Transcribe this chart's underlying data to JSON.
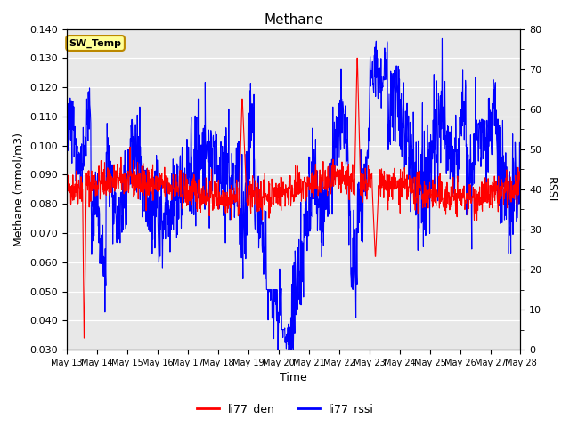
{
  "title": "Methane",
  "ylabel_left": "Methane (mmol/m3)",
  "ylabel_right": "RSSI",
  "xlabel": "Time",
  "ylim_left": [
    0.03,
    0.14
  ],
  "ylim_right": [
    0,
    80
  ],
  "yticks_left": [
    0.03,
    0.04,
    0.05,
    0.06,
    0.07,
    0.08,
    0.09,
    0.1,
    0.11,
    0.12,
    0.13,
    0.14
  ],
  "yticks_right": [
    0,
    10,
    20,
    30,
    40,
    50,
    60,
    70,
    80
  ],
  "yticks_right_minor": [
    5,
    15,
    25,
    35,
    45,
    55,
    65,
    75
  ],
  "xtick_labels": [
    "May 13",
    "May 14",
    "May 15",
    "May 16",
    "May 17",
    "May 18",
    "May 19",
    "May 20",
    "May 21",
    "May 22",
    "May 23",
    "May 24",
    "May 25",
    "May 26",
    "May 27",
    "May 28"
  ],
  "color_red": "#FF0000",
  "color_blue": "#0000FF",
  "bg_color": "#E8E8E8",
  "legend_label_red": "li77_den",
  "legend_label_blue": "li77_rssi",
  "sw_temp_label": "SW_Temp",
  "sw_temp_bg": "#FFFF99",
  "sw_temp_border": "#BB8800",
  "linewidth": 0.8
}
